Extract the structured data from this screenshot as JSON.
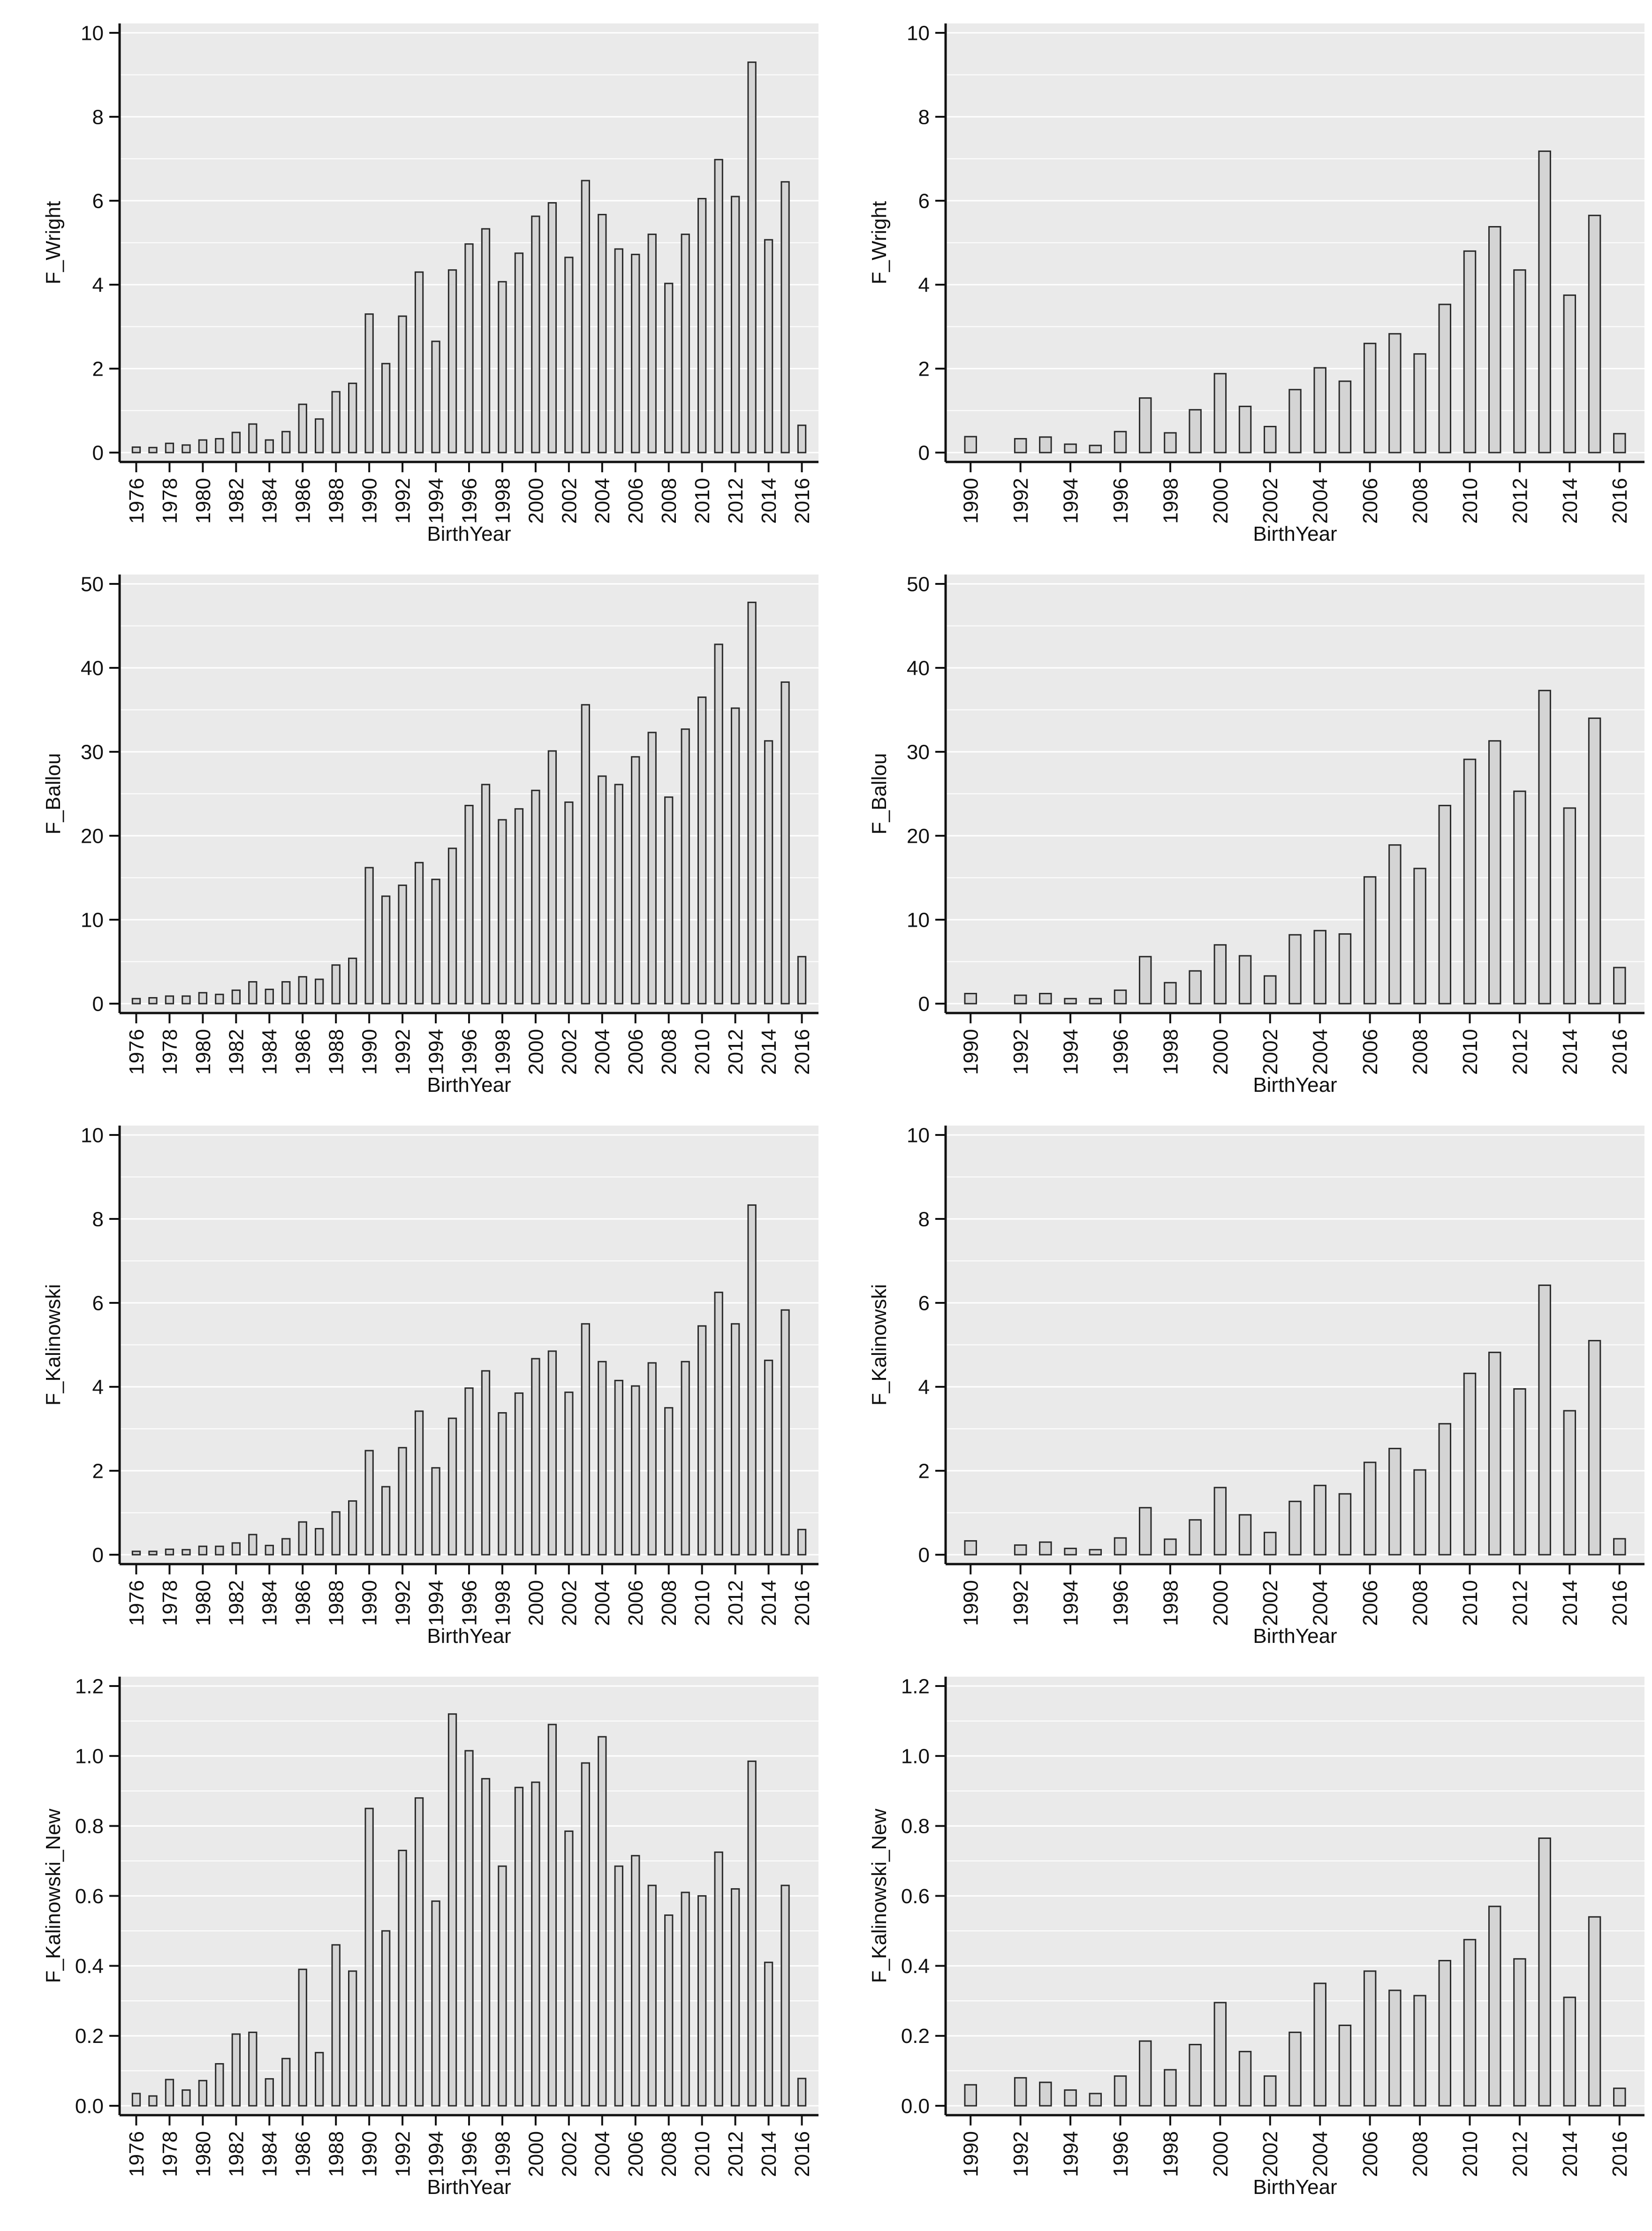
{
  "figure": {
    "colors": {
      "plot_bg": "#eaeaea",
      "grid": "#ffffff",
      "bar_fill": "#d4d4d4",
      "bar_stroke": "#2a2a2a",
      "axis": "#111111"
    }
  },
  "chart_data": [
    {
      "type": "bar",
      "xlabel": "BirthYear",
      "ylabel": "F_Wright",
      "ylim": [
        0,
        10
      ],
      "yticks": [
        0,
        2,
        4,
        6,
        8,
        10
      ],
      "ytick_labels": [
        "0",
        "2",
        "4",
        "6",
        "8",
        "10"
      ],
      "xticks": [
        1976,
        1978,
        1980,
        1982,
        1984,
        1986,
        1988,
        1990,
        1992,
        1994,
        1996,
        1998,
        2000,
        2002,
        2004,
        2006,
        2008,
        2010,
        2012,
        2014,
        2016
      ],
      "xtick_labels": [
        "1976",
        "1978",
        "1980",
        "1982",
        "1984",
        "1986",
        "1988",
        "1990",
        "1992",
        "1994",
        "1996",
        "1998",
        "2000",
        "2002",
        "2004",
        "2006",
        "2008",
        "2010",
        "2012",
        "2014",
        "2016"
      ],
      "grid": true,
      "x": [
        1976,
        1977,
        1978,
        1979,
        1980,
        1981,
        1982,
        1983,
        1984,
        1985,
        1986,
        1987,
        1988,
        1989,
        1990,
        1991,
        1992,
        1993,
        1994,
        1995,
        1996,
        1997,
        1998,
        1999,
        2000,
        2001,
        2002,
        2003,
        2004,
        2005,
        2006,
        2007,
        2008,
        2009,
        2010,
        2011,
        2012,
        2013,
        2014,
        2015,
        2016
      ],
      "values": [
        0.13,
        0.12,
        0.22,
        0.18,
        0.3,
        0.33,
        0.48,
        0.68,
        0.3,
        0.5,
        1.15,
        0.8,
        1.45,
        1.65,
        3.3,
        2.12,
        3.25,
        4.3,
        2.65,
        4.35,
        4.97,
        5.33,
        4.07,
        4.75,
        5.63,
        5.95,
        4.65,
        6.48,
        5.67,
        4.85,
        4.72,
        5.2,
        4.03,
        5.2,
        6.05,
        6.98,
        6.1,
        9.3,
        5.07,
        6.45,
        0.65
      ]
    },
    {
      "type": "bar",
      "xlabel": "BirthYear",
      "ylabel": "F_Wright",
      "ylim": [
        0,
        10
      ],
      "yticks": [
        0,
        2,
        4,
        6,
        8,
        10
      ],
      "ytick_labels": [
        "0",
        "2",
        "4",
        "6",
        "8",
        "10"
      ],
      "xticks": [
        1990,
        1992,
        1994,
        1996,
        1998,
        2000,
        2002,
        2004,
        2006,
        2008,
        2010,
        2012,
        2014,
        2016
      ],
      "xtick_labels": [
        "1990",
        "1992",
        "1994",
        "1996",
        "1998",
        "2000",
        "2002",
        "2004",
        "2006",
        "2008",
        "2010",
        "2012",
        "2014",
        "2016"
      ],
      "grid": true,
      "x": [
        1990,
        1992,
        1993,
        1994,
        1995,
        1996,
        1997,
        1998,
        1999,
        2000,
        2001,
        2002,
        2003,
        2004,
        2005,
        2006,
        2007,
        2008,
        2009,
        2010,
        2011,
        2012,
        2013,
        2014,
        2015,
        2016
      ],
      "values": [
        0.38,
        0.33,
        0.37,
        0.2,
        0.17,
        0.5,
        1.3,
        0.47,
        1.02,
        1.88,
        1.1,
        0.62,
        1.5,
        2.02,
        1.7,
        2.6,
        2.83,
        2.35,
        3.53,
        4.8,
        5.38,
        4.35,
        7.18,
        3.75,
        5.65,
        0.45
      ]
    },
    {
      "type": "bar",
      "xlabel": "BirthYear",
      "ylabel": "F_Ballou",
      "ylim": [
        0,
        50
      ],
      "yticks": [
        0,
        10,
        20,
        30,
        40,
        50
      ],
      "ytick_labels": [
        "0",
        "10",
        "20",
        "30",
        "40",
        "50"
      ],
      "xticks": [
        1976,
        1978,
        1980,
        1982,
        1984,
        1986,
        1988,
        1990,
        1992,
        1994,
        1996,
        1998,
        2000,
        2002,
        2004,
        2006,
        2008,
        2010,
        2012,
        2014,
        2016
      ],
      "xtick_labels": [
        "1976",
        "1978",
        "1980",
        "1982",
        "1984",
        "1986",
        "1988",
        "1990",
        "1992",
        "1994",
        "1996",
        "1998",
        "2000",
        "2002",
        "2004",
        "2006",
        "2008",
        "2010",
        "2012",
        "2014",
        "2016"
      ],
      "grid": true,
      "x": [
        1976,
        1977,
        1978,
        1979,
        1980,
        1981,
        1982,
        1983,
        1984,
        1985,
        1986,
        1987,
        1988,
        1989,
        1990,
        1991,
        1992,
        1993,
        1994,
        1995,
        1996,
        1997,
        1998,
        1999,
        2000,
        2001,
        2002,
        2003,
        2004,
        2005,
        2006,
        2007,
        2008,
        2009,
        2010,
        2011,
        2012,
        2013,
        2014,
        2015,
        2016
      ],
      "values": [
        0.6,
        0.7,
        0.9,
        0.9,
        1.3,
        1.1,
        1.6,
        2.6,
        1.7,
        2.6,
        3.2,
        2.9,
        4.6,
        5.4,
        16.2,
        12.8,
        14.1,
        16.8,
        14.8,
        18.5,
        23.6,
        26.1,
        21.9,
        23.2,
        25.4,
        30.1,
        24.0,
        35.6,
        27.1,
        26.1,
        29.4,
        32.3,
        24.6,
        32.7,
        36.5,
        42.8,
        35.2,
        47.8,
        31.3,
        38.3,
        5.6
      ]
    },
    {
      "type": "bar",
      "xlabel": "BirthYear",
      "ylabel": "F_Ballou",
      "ylim": [
        0,
        50
      ],
      "yticks": [
        0,
        10,
        20,
        30,
        40,
        50
      ],
      "ytick_labels": [
        "0",
        "10",
        "20",
        "30",
        "40",
        "50"
      ],
      "xticks": [
        1990,
        1992,
        1994,
        1996,
        1998,
        2000,
        2002,
        2004,
        2006,
        2008,
        2010,
        2012,
        2014,
        2016
      ],
      "xtick_labels": [
        "1990",
        "1992",
        "1994",
        "1996",
        "1998",
        "2000",
        "2002",
        "2004",
        "2006",
        "2008",
        "2010",
        "2012",
        "2014",
        "2016"
      ],
      "grid": true,
      "x": [
        1990,
        1992,
        1993,
        1994,
        1995,
        1996,
        1997,
        1998,
        1999,
        2000,
        2001,
        2002,
        2003,
        2004,
        2005,
        2006,
        2007,
        2008,
        2009,
        2010,
        2011,
        2012,
        2013,
        2014,
        2015,
        2016
      ],
      "values": [
        1.2,
        1.0,
        1.2,
        0.6,
        0.6,
        1.6,
        5.6,
        2.5,
        3.9,
        7.0,
        5.7,
        3.3,
        8.2,
        8.7,
        8.3,
        15.1,
        18.9,
        16.1,
        23.6,
        29.1,
        31.3,
        25.3,
        37.3,
        23.3,
        34.0,
        4.3
      ]
    },
    {
      "type": "bar",
      "xlabel": "BirthYear",
      "ylabel": "F_Kalinowski",
      "ylim": [
        0,
        10
      ],
      "yticks": [
        0,
        2,
        4,
        6,
        8,
        10
      ],
      "ytick_labels": [
        "0",
        "2",
        "4",
        "6",
        "8",
        "10"
      ],
      "xticks": [
        1976,
        1978,
        1980,
        1982,
        1984,
        1986,
        1988,
        1990,
        1992,
        1994,
        1996,
        1998,
        2000,
        2002,
        2004,
        2006,
        2008,
        2010,
        2012,
        2014,
        2016
      ],
      "xtick_labels": [
        "1976",
        "1978",
        "1980",
        "1982",
        "1984",
        "1986",
        "1988",
        "1990",
        "1992",
        "1994",
        "1996",
        "1998",
        "2000",
        "2002",
        "2004",
        "2006",
        "2008",
        "2010",
        "2012",
        "2014",
        "2016"
      ],
      "grid": true,
      "x": [
        1976,
        1977,
        1978,
        1979,
        1980,
        1981,
        1982,
        1983,
        1984,
        1985,
        1986,
        1987,
        1988,
        1989,
        1990,
        1991,
        1992,
        1993,
        1994,
        1995,
        1996,
        1997,
        1998,
        1999,
        2000,
        2001,
        2002,
        2003,
        2004,
        2005,
        2006,
        2007,
        2008,
        2009,
        2010,
        2011,
        2012,
        2013,
        2014,
        2015,
        2016
      ],
      "values": [
        0.08,
        0.08,
        0.13,
        0.12,
        0.2,
        0.2,
        0.28,
        0.48,
        0.22,
        0.38,
        0.78,
        0.62,
        1.02,
        1.28,
        2.48,
        1.62,
        2.55,
        3.42,
        2.07,
        3.25,
        3.97,
        4.38,
        3.38,
        3.85,
        4.67,
        4.85,
        3.87,
        5.5,
        4.6,
        4.15,
        4.02,
        4.57,
        3.5,
        4.6,
        5.45,
        6.25,
        5.5,
        8.33,
        4.63,
        5.83,
        0.6
      ]
    },
    {
      "type": "bar",
      "xlabel": "BirthYear",
      "ylabel": "F_Kalinowski",
      "ylim": [
        0,
        10
      ],
      "yticks": [
        0,
        2,
        4,
        6,
        8,
        10
      ],
      "ytick_labels": [
        "0",
        "2",
        "4",
        "6",
        "8",
        "10"
      ],
      "xticks": [
        1990,
        1992,
        1994,
        1996,
        1998,
        2000,
        2002,
        2004,
        2006,
        2008,
        2010,
        2012,
        2014,
        2016
      ],
      "xtick_labels": [
        "1990",
        "1992",
        "1994",
        "1996",
        "1998",
        "2000",
        "2002",
        "2004",
        "2006",
        "2008",
        "2010",
        "2012",
        "2014",
        "2016"
      ],
      "grid": true,
      "x": [
        1990,
        1992,
        1993,
        1994,
        1995,
        1996,
        1997,
        1998,
        1999,
        2000,
        2001,
        2002,
        2003,
        2004,
        2005,
        2006,
        2007,
        2008,
        2009,
        2010,
        2011,
        2012,
        2013,
        2014,
        2015,
        2016
      ],
      "values": [
        0.33,
        0.23,
        0.3,
        0.15,
        0.12,
        0.4,
        1.12,
        0.37,
        0.83,
        1.6,
        0.95,
        0.53,
        1.27,
        1.65,
        1.45,
        2.2,
        2.53,
        2.02,
        3.12,
        4.32,
        4.82,
        3.95,
        6.42,
        3.43,
        5.1,
        0.38
      ]
    },
    {
      "type": "bar",
      "xlabel": "BirthYear",
      "ylabel": "F_Kalinowski_New",
      "ylim": [
        0,
        1.2
      ],
      "yticks": [
        0,
        0.2,
        0.4,
        0.6,
        0.8,
        1.0,
        1.2
      ],
      "ytick_labels": [
        "0.0",
        "0.2",
        "0.4",
        "0.6",
        "0.8",
        "1.0",
        "1.2"
      ],
      "xticks": [
        1976,
        1978,
        1980,
        1982,
        1984,
        1986,
        1988,
        1990,
        1992,
        1994,
        1996,
        1998,
        2000,
        2002,
        2004,
        2006,
        2008,
        2010,
        2012,
        2014,
        2016
      ],
      "xtick_labels": [
        "1976",
        "1978",
        "1980",
        "1982",
        "1984",
        "1986",
        "1988",
        "1990",
        "1992",
        "1994",
        "1996",
        "1998",
        "2000",
        "2002",
        "2004",
        "2006",
        "2008",
        "2010",
        "2012",
        "2014",
        "2016"
      ],
      "grid": true,
      "x": [
        1976,
        1977,
        1978,
        1979,
        1980,
        1981,
        1982,
        1983,
        1984,
        1985,
        1986,
        1987,
        1988,
        1989,
        1990,
        1991,
        1992,
        1993,
        1994,
        1995,
        1996,
        1997,
        1998,
        1999,
        2000,
        2001,
        2002,
        2003,
        2004,
        2005,
        2006,
        2007,
        2008,
        2009,
        2010,
        2011,
        2012,
        2013,
        2014,
        2015,
        2016
      ],
      "values": [
        0.035,
        0.028,
        0.075,
        0.045,
        0.072,
        0.12,
        0.205,
        0.21,
        0.077,
        0.135,
        0.39,
        0.152,
        0.46,
        0.385,
        0.85,
        0.5,
        0.73,
        0.88,
        0.585,
        1.12,
        1.015,
        0.935,
        0.685,
        0.91,
        0.925,
        1.09,
        0.785,
        0.98,
        1.055,
        0.685,
        0.715,
        0.63,
        0.545,
        0.61,
        0.6,
        0.725,
        0.62,
        0.985,
        0.41,
        0.63,
        0.078
      ]
    },
    {
      "type": "bar",
      "xlabel": "BirthYear",
      "ylabel": "F_Kalinowski_New",
      "ylim": [
        0,
        1.2
      ],
      "yticks": [
        0,
        0.2,
        0.4,
        0.6,
        0.8,
        1.0,
        1.2
      ],
      "ytick_labels": [
        "0.0",
        "0.2",
        "0.4",
        "0.6",
        "0.8",
        "1.0",
        "1.2"
      ],
      "xticks": [
        1990,
        1992,
        1994,
        1996,
        1998,
        2000,
        2002,
        2004,
        2006,
        2008,
        2010,
        2012,
        2014,
        2016
      ],
      "xtick_labels": [
        "1990",
        "1992",
        "1994",
        "1996",
        "1998",
        "2000",
        "2002",
        "2004",
        "2006",
        "2008",
        "2010",
        "2012",
        "2014",
        "2016"
      ],
      "grid": true,
      "x": [
        1990,
        1992,
        1993,
        1994,
        1995,
        1996,
        1997,
        1998,
        1999,
        2000,
        2001,
        2002,
        2003,
        2004,
        2005,
        2006,
        2007,
        2008,
        2009,
        2010,
        2011,
        2012,
        2013,
        2014,
        2015,
        2016
      ],
      "values": [
        0.06,
        0.08,
        0.067,
        0.045,
        0.035,
        0.085,
        0.185,
        0.103,
        0.175,
        0.295,
        0.155,
        0.085,
        0.21,
        0.35,
        0.23,
        0.385,
        0.33,
        0.315,
        0.415,
        0.475,
        0.57,
        0.42,
        0.765,
        0.31,
        0.54,
        0.05
      ]
    }
  ]
}
